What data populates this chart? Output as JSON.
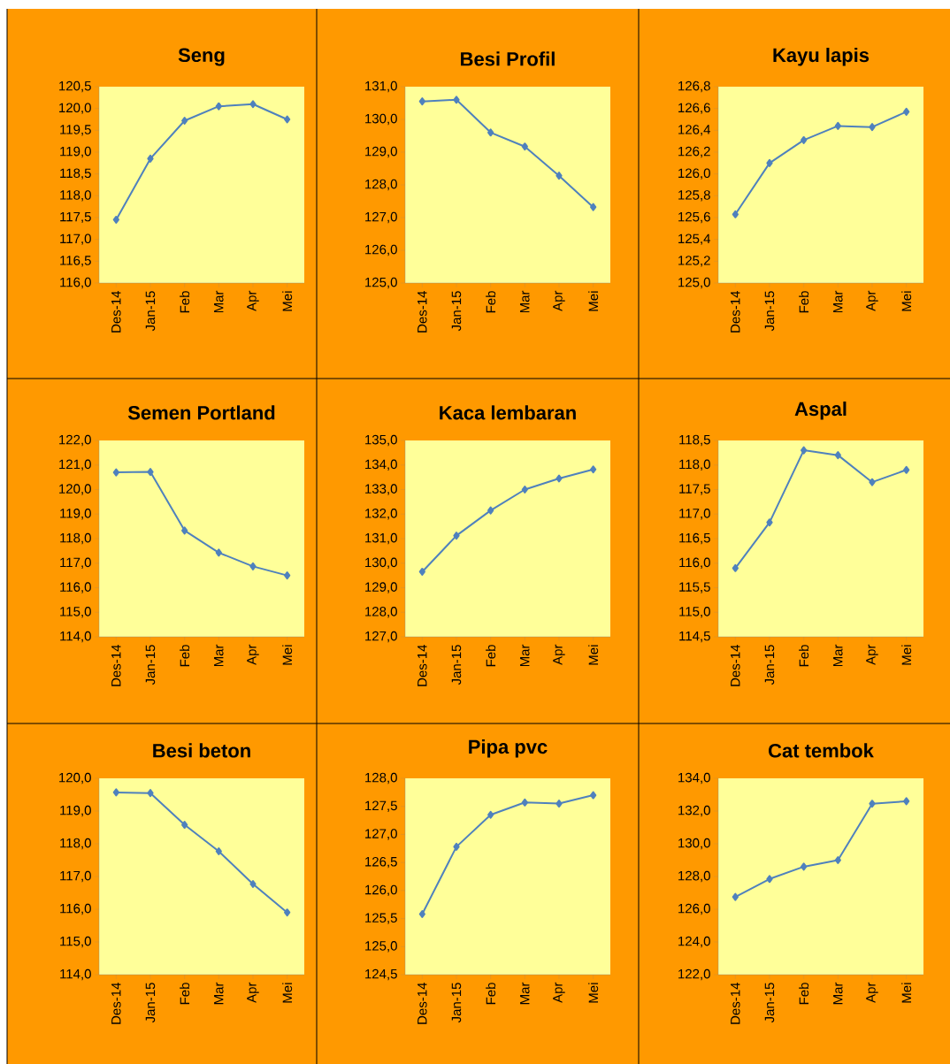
{
  "chart_data": [
    {
      "type": "line",
      "title": "Seng",
      "categories": [
        "Des-14",
        "Jan-15",
        "Feb",
        "Mar",
        "Apr",
        "Mei"
      ],
      "values": [
        117.45,
        118.85,
        119.72,
        120.05,
        120.1,
        119.75
      ],
      "color": "#4f81bd",
      "marker": "diamond",
      "ylim": [
        116,
        120.5
      ],
      "yticks": [
        {
          "value": 116,
          "label": "116,0"
        },
        {
          "value": 116.5,
          "label": "116,5"
        },
        {
          "value": 117,
          "label": "117,0"
        },
        {
          "value": 117.5,
          "label": "117,5"
        },
        {
          "value": 118,
          "label": "118,0"
        },
        {
          "value": 118.5,
          "label": "118,5"
        },
        {
          "value": 119,
          "label": "119,0"
        },
        {
          "value": 119.5,
          "label": "119,5"
        },
        {
          "value": 120,
          "label": "120,0"
        },
        {
          "value": 120.5,
          "label": "120,5"
        }
      ]
    },
    {
      "type": "line",
      "title": "Besi Profil",
      "categories": [
        "Des-14",
        "Jan-15",
        "Feb",
        "Mar",
        "Apr",
        "Mei"
      ],
      "values": [
        130.55,
        130.6,
        129.6,
        129.17,
        128.28,
        127.32
      ],
      "color": "#4f81bd",
      "marker": "diamond",
      "ylim": [
        125,
        131
      ],
      "yticks": [
        {
          "value": 125,
          "label": "125,0"
        },
        {
          "value": 126,
          "label": "126,0"
        },
        {
          "value": 127,
          "label": "127,0"
        },
        {
          "value": 128,
          "label": "128,0"
        },
        {
          "value": 129,
          "label": "129,0"
        },
        {
          "value": 130,
          "label": "130,0"
        },
        {
          "value": 131,
          "label": "131,0"
        }
      ]
    },
    {
      "type": "line",
      "title": "Kayu lapis",
      "categories": [
        "Des-14",
        "Jan-15",
        "Feb",
        "Mar",
        "Apr",
        "Mei"
      ],
      "values": [
        125.63,
        126.1,
        126.31,
        126.44,
        126.43,
        126.57
      ],
      "color": "#4f81bd",
      "marker": "diamond",
      "ylim": [
        125,
        126.8
      ],
      "yticks": [
        {
          "value": 125,
          "label": "125,0"
        },
        {
          "value": 125.2,
          "label": "125,2"
        },
        {
          "value": 125.4,
          "label": "125,4"
        },
        {
          "value": 125.6,
          "label": "125,6"
        },
        {
          "value": 125.8,
          "label": "125,8"
        },
        {
          "value": 126,
          "label": "126,0"
        },
        {
          "value": 126.2,
          "label": "126,2"
        },
        {
          "value": 126.4,
          "label": "126,4"
        },
        {
          "value": 126.6,
          "label": "126,6"
        },
        {
          "value": 126.8,
          "label": "126,8"
        }
      ]
    },
    {
      "type": "line",
      "title": "Semen Portland",
      "categories": [
        "Des-14",
        "Jan-15",
        "Feb",
        "Mar",
        "Apr",
        "Mei"
      ],
      "values": [
        120.7,
        120.72,
        118.33,
        117.43,
        116.87,
        116.5
      ],
      "color": "#4f81bd",
      "marker": "diamond",
      "ylim": [
        114,
        122
      ],
      "yticks": [
        {
          "value": 114,
          "label": "114,0"
        },
        {
          "value": 115,
          "label": "115,0"
        },
        {
          "value": 116,
          "label": "116,0"
        },
        {
          "value": 117,
          "label": "117,0"
        },
        {
          "value": 118,
          "label": "118,0"
        },
        {
          "value": 119,
          "label": "119,0"
        },
        {
          "value": 120,
          "label": "120,0"
        },
        {
          "value": 121,
          "label": "121,0"
        },
        {
          "value": 122,
          "label": "122,0"
        }
      ]
    },
    {
      "type": "line",
      "title": "Kaca lembaran",
      "categories": [
        "Des-14",
        "Jan-15",
        "Feb",
        "Mar",
        "Apr",
        "Mei"
      ],
      "values": [
        129.65,
        131.12,
        132.15,
        133.0,
        133.45,
        133.82
      ],
      "color": "#4f81bd",
      "marker": "diamond",
      "ylim": [
        127,
        135
      ],
      "yticks": [
        {
          "value": 127,
          "label": "127,0"
        },
        {
          "value": 128,
          "label": "128,0"
        },
        {
          "value": 129,
          "label": "129,0"
        },
        {
          "value": 130,
          "label": "130,0"
        },
        {
          "value": 131,
          "label": "131,0"
        },
        {
          "value": 132,
          "label": "132,0"
        },
        {
          "value": 133,
          "label": "133,0"
        },
        {
          "value": 134,
          "label": "134,0"
        },
        {
          "value": 135,
          "label": "135,0"
        }
      ]
    },
    {
      "type": "line",
      "title": "Aspal",
      "categories": [
        "Des-14",
        "Jan-15",
        "Feb",
        "Mar",
        "Apr",
        "Mei"
      ],
      "values": [
        115.9,
        116.83,
        118.3,
        118.2,
        117.65,
        117.9
      ],
      "color": "#4f81bd",
      "marker": "diamond",
      "ylim": [
        114.5,
        118.5
      ],
      "yticks": [
        {
          "value": 114.5,
          "label": "114,5"
        },
        {
          "value": 115,
          "label": "115,0"
        },
        {
          "value": 115.5,
          "label": "115,5"
        },
        {
          "value": 116,
          "label": "116,0"
        },
        {
          "value": 116.5,
          "label": "116,5"
        },
        {
          "value": 117,
          "label": "117,0"
        },
        {
          "value": 117.5,
          "label": "117,5"
        },
        {
          "value": 118,
          "label": "118,0"
        },
        {
          "value": 118.5,
          "label": "118,5"
        }
      ]
    },
    {
      "type": "line",
      "title": "Besi beton",
      "categories": [
        "Des-14",
        "Jan-15",
        "Feb",
        "Mar",
        "Apr",
        "Mei"
      ],
      "values": [
        119.57,
        119.55,
        118.58,
        117.77,
        116.77,
        115.9
      ],
      "color": "#4f81bd",
      "marker": "diamond",
      "ylim": [
        114,
        120
      ],
      "yticks": [
        {
          "value": 114,
          "label": "114,0"
        },
        {
          "value": 115,
          "label": "115,0"
        },
        {
          "value": 116,
          "label": "116,0"
        },
        {
          "value": 117,
          "label": "117,0"
        },
        {
          "value": 118,
          "label": "118,0"
        },
        {
          "value": 119,
          "label": "119,0"
        },
        {
          "value": 120,
          "label": "120,0"
        }
      ]
    },
    {
      "type": "line",
      "title": "Pipa pvc",
      "categories": [
        "Des-14",
        "Jan-15",
        "Feb",
        "Mar",
        "Apr",
        "Mei"
      ],
      "values": [
        125.58,
        126.78,
        127.35,
        127.57,
        127.55,
        127.7
      ],
      "color": "#4f81bd",
      "marker": "diamond",
      "ylim": [
        124.5,
        128
      ],
      "yticks": [
        {
          "value": 124.5,
          "label": "124,5"
        },
        {
          "value": 125,
          "label": "125,0"
        },
        {
          "value": 125.5,
          "label": "125,5"
        },
        {
          "value": 126,
          "label": "126,0"
        },
        {
          "value": 126.5,
          "label": "126,5"
        },
        {
          "value": 127,
          "label": "127,0"
        },
        {
          "value": 127.5,
          "label": "127,5"
        },
        {
          "value": 128,
          "label": "128,0"
        }
      ]
    },
    {
      "type": "line",
      "title": "Cat tembok",
      "categories": [
        "Des-14",
        "Jan-15",
        "Feb",
        "Mar",
        "Apr",
        "Mei"
      ],
      "values": [
        126.75,
        127.85,
        128.6,
        129.0,
        132.45,
        132.6
      ],
      "color": "#4f81bd",
      "marker": "diamond",
      "ylim": [
        122,
        134
      ],
      "yticks": [
        {
          "value": 122,
          "label": "122,0"
        },
        {
          "value": 124,
          "label": "124,0"
        },
        {
          "value": 126,
          "label": "126,0"
        },
        {
          "value": 128,
          "label": "128,0"
        },
        {
          "value": 130,
          "label": "130,0"
        },
        {
          "value": 132,
          "label": "132,0"
        },
        {
          "value": 134,
          "label": "134,0"
        }
      ]
    }
  ]
}
